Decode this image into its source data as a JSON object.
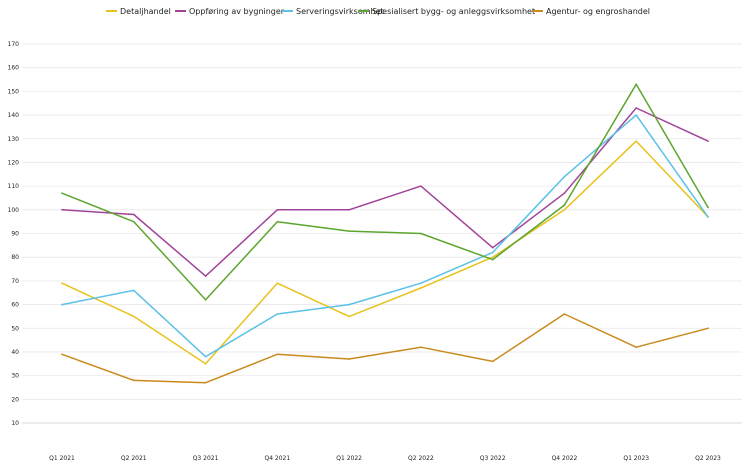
{
  "chart_data": {
    "type": "line",
    "title": "",
    "xlabel": "",
    "ylabel": "",
    "categories": [
      "Q1 2021",
      "Q2 2021",
      "Q3 2021",
      "Q4 2021",
      "Q1 2022",
      "Q2 2022",
      "Q3 2022",
      "Q4 2022",
      "Q1 2023",
      "Q2 2023"
    ],
    "ylim": [
      10,
      170
    ],
    "yticks": [
      10,
      20,
      30,
      40,
      50,
      60,
      70,
      80,
      90,
      100,
      110,
      120,
      130,
      140,
      150,
      160,
      170
    ],
    "grid": true,
    "legend_position": "top-center",
    "series": [
      {
        "name": "Detaljhandel",
        "color": "#e8c21c",
        "values": [
          69,
          55,
          35,
          69,
          55,
          67,
          80,
          100,
          129,
          97
        ]
      },
      {
        "name": "Oppføring av bygninger",
        "color": "#a2439a",
        "values": [
          100,
          98,
          72,
          100,
          100,
          110,
          84,
          107,
          143,
          129
        ]
      },
      {
        "name": "Serveringsvirksomhet",
        "color": "#5bc1e6",
        "values": [
          60,
          66,
          38,
          56,
          60,
          69,
          82,
          114,
          140,
          97
        ]
      },
      {
        "name": "Spesialisert bygg- og anleggsvirksomhet",
        "color": "#5ca52e",
        "values": [
          107,
          95,
          62,
          95,
          91,
          90,
          79,
          102,
          153,
          101
        ]
      },
      {
        "name": "Agentur- og engroshandel",
        "color": "#c98a1c",
        "values": [
          39,
          28,
          27,
          39,
          37,
          42,
          36,
          56,
          42,
          50
        ]
      }
    ]
  }
}
